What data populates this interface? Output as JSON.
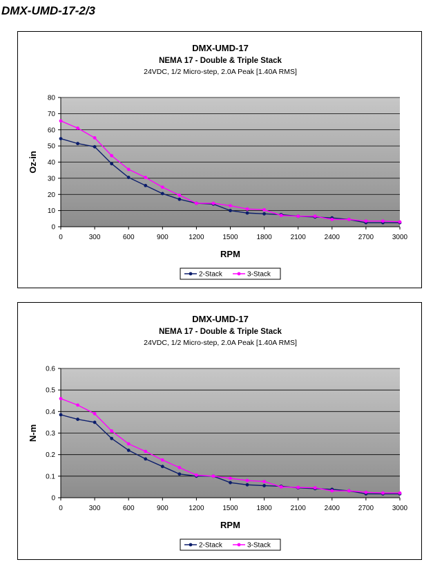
{
  "page": {
    "title": "DMX-UMD-17-2/3"
  },
  "colors": {
    "series_2stack": "#0b1d6b",
    "series_3stack": "#ff00ff",
    "plot_top": "#c7c7c7",
    "plot_bottom": "#8c8c8c"
  },
  "chart_data": [
    {
      "type": "line",
      "title": "DMX-UMD-17",
      "subtitle": "NEMA 17 - Double & Triple Stack",
      "subtitle2": "24VDC, 1/2 Micro-step, 2.0A Peak [1.40A RMS]",
      "xlabel": "RPM",
      "ylabel": "Oz-in",
      "xlim": [
        0,
        3000
      ],
      "ylim": [
        0,
        80
      ],
      "x_ticks": [
        0,
        300,
        600,
        900,
        1200,
        1500,
        1800,
        2100,
        2400,
        2700,
        3000
      ],
      "y_ticks": [
        0,
        10,
        20,
        30,
        40,
        50,
        60,
        70,
        80
      ],
      "x_tick_labels": [
        "0",
        "300",
        "600",
        "900",
        "1200",
        "1500",
        "1800",
        "2100",
        "2400",
        "2700",
        "3000"
      ],
      "y_tick_labels": [
        "0",
        "10",
        "20",
        "30",
        "40",
        "50",
        "60",
        "70",
        "80"
      ],
      "grid": "horizontal",
      "legend": "bottom-center",
      "x": [
        0,
        150,
        300,
        450,
        600,
        750,
        900,
        1050,
        1200,
        1350,
        1500,
        1650,
        1800,
        1950,
        2100,
        2250,
        2400,
        2550,
        2700,
        2850,
        3000
      ],
      "series": [
        {
          "name": "2-Stack",
          "values": [
            54.5,
            51.5,
            49.5,
            39,
            30.5,
            25.5,
            20.5,
            17,
            14.5,
            14,
            10,
            8.5,
            8,
            7.5,
            6.5,
            6,
            5.5,
            4.5,
            2.5,
            2.5,
            2.5
          ]
        },
        {
          "name": "3-Stack",
          "values": [
            65.5,
            61,
            55,
            44,
            35.5,
            30.5,
            24.5,
            19.5,
            14.5,
            14.5,
            13,
            11,
            10.5,
            7,
            6.5,
            6.5,
            4.5,
            4.5,
            3.5,
            3.5,
            3
          ]
        }
      ]
    },
    {
      "type": "line",
      "title": "DMX-UMD-17",
      "subtitle": "NEMA 17 - Double & Triple Stack",
      "subtitle2": "24VDC, 1/2 Micro-step, 2.0A Peak [1.40A RMS]",
      "xlabel": "RPM",
      "ylabel": "N-m",
      "xlim": [
        0,
        3000
      ],
      "ylim": [
        0,
        0.6
      ],
      "x_ticks": [
        0,
        300,
        600,
        900,
        1200,
        1500,
        1800,
        2100,
        2400,
        2700,
        3000
      ],
      "y_ticks": [
        0,
        0.1,
        0.2,
        0.3,
        0.4,
        0.5,
        0.6
      ],
      "x_tick_labels": [
        "0",
        "300",
        "600",
        "900",
        "1200",
        "1500",
        "1800",
        "2100",
        "2400",
        "2700",
        "3000"
      ],
      "y_tick_labels": [
        "0",
        "0.1",
        "0.2",
        "0.3",
        "0.4",
        "0.5",
        "0.6"
      ],
      "grid": "horizontal",
      "legend": "bottom-center",
      "x": [
        0,
        150,
        300,
        450,
        600,
        750,
        900,
        1050,
        1200,
        1350,
        1500,
        1650,
        1800,
        1950,
        2100,
        2250,
        2400,
        2550,
        2700,
        2850,
        3000
      ],
      "series": [
        {
          "name": "2-Stack",
          "values": [
            0.385,
            0.364,
            0.35,
            0.275,
            0.22,
            0.18,
            0.145,
            0.11,
            0.1,
            0.1,
            0.07,
            0.06,
            0.056,
            0.053,
            0.046,
            0.042,
            0.039,
            0.032,
            0.018,
            0.018,
            0.018
          ]
        },
        {
          "name": "3-Stack",
          "values": [
            0.46,
            0.43,
            0.39,
            0.31,
            0.25,
            0.215,
            0.175,
            0.14,
            0.105,
            0.1,
            0.09,
            0.08,
            0.075,
            0.05,
            0.048,
            0.046,
            0.032,
            0.032,
            0.025,
            0.022,
            0.022
          ]
        }
      ]
    }
  ]
}
